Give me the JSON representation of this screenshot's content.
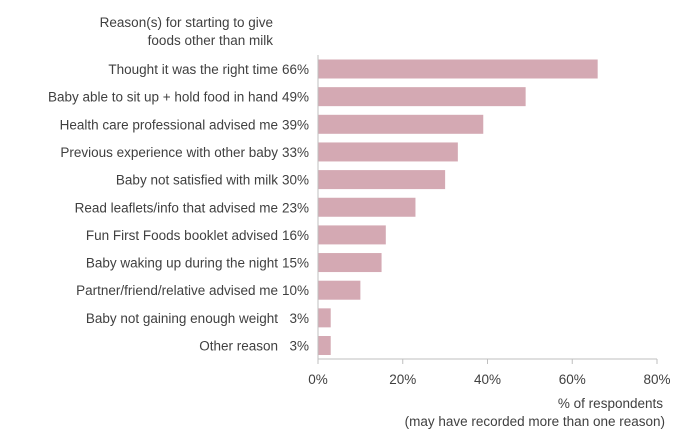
{
  "chart_data": {
    "type": "bar",
    "orientation": "horizontal",
    "category_header": [
      "Reason(s) for starting to give",
      "foods other than milk"
    ],
    "categories": [
      "Thought it was the right time",
      "Baby able to sit up + hold food in hand",
      "Health care professional advised me",
      "Previous experience with other baby",
      "Baby not satisfied with milk",
      "Read leaflets/info that advised me",
      "Fun First Foods booklet advised",
      "Baby waking up during the night",
      "Partner/friend/relative advised me",
      "Baby not gaining enough weight",
      "Other reason"
    ],
    "values": [
      66,
      49,
      39,
      33,
      30,
      23,
      16,
      15,
      10,
      3,
      3
    ],
    "value_labels": [
      "66%",
      "49%",
      "39%",
      "33%",
      "30%",
      "23%",
      "16%",
      "15%",
      "10%",
      "3%",
      "3%"
    ],
    "xlim": [
      0,
      80
    ],
    "xticks": [
      0,
      20,
      40,
      60,
      80
    ],
    "xtick_labels": [
      "0%",
      "20%",
      "40%",
      "60%",
      "80%"
    ],
    "xlabel": [
      "% of respondents",
      "(may have recorded more than one reason)"
    ],
    "bar_color": "#d4a9b3",
    "axis_color": "#bfbfbf",
    "grid": false,
    "legend": "none"
  }
}
